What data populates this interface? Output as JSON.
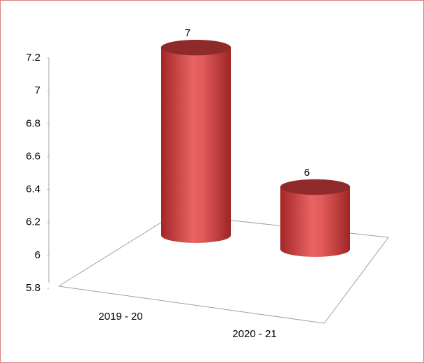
{
  "chart_data": {
    "type": "bar",
    "style": "3d-cylinder",
    "categories": [
      "2019 - 20",
      "2020 - 21"
    ],
    "values": [
      7,
      6
    ],
    "value_labels": [
      "7",
      "6"
    ],
    "color": "#c0392b",
    "ylim": [
      5.8,
      7.2
    ],
    "yticks": [
      5.8,
      6,
      6.2,
      6.4,
      6.6,
      6.8,
      7,
      7.2
    ],
    "grid": false
  }
}
